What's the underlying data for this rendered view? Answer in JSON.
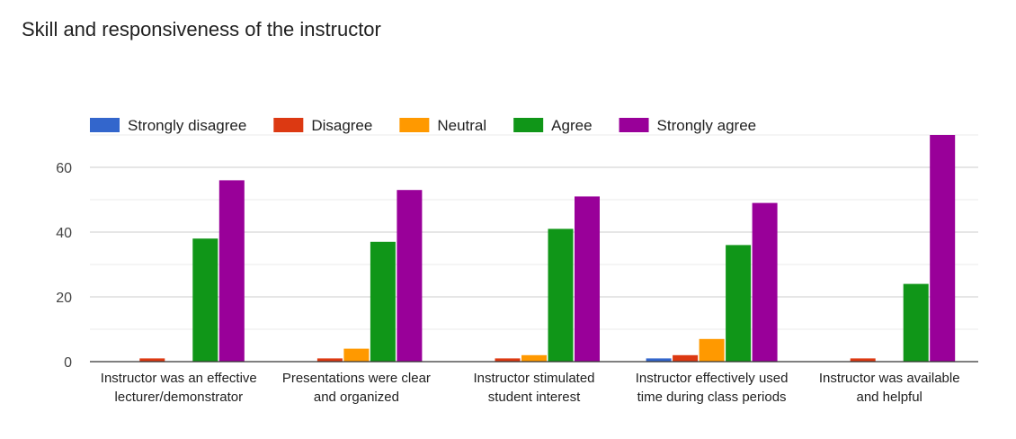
{
  "chart_data": {
    "type": "bar",
    "title": "Skill and responsiveness of the instructor",
    "xlabel": "",
    "ylabel": "",
    "ylim": [
      0,
      70
    ],
    "yticks": [
      0,
      20,
      40,
      60
    ],
    "grid": true,
    "legend_position": "top",
    "categories": [
      [
        "Instructor was an effective",
        "lecturer/demonstrator"
      ],
      [
        "Presentations were clear",
        "and organized"
      ],
      [
        "Instructor stimulated",
        "student interest"
      ],
      [
        "Instructor effectively used",
        "time during class periods"
      ],
      [
        "Instructor was available",
        "and helpful"
      ]
    ],
    "series": [
      {
        "name": "Strongly disagree",
        "color": "#3366cc",
        "values": [
          0,
          0,
          0,
          1,
          0
        ]
      },
      {
        "name": "Disagree",
        "color": "#dc3912",
        "values": [
          1,
          1,
          1,
          2,
          1
        ]
      },
      {
        "name": "Neutral",
        "color": "#ff9900",
        "values": [
          0,
          4,
          2,
          7,
          0
        ]
      },
      {
        "name": "Agree",
        "color": "#109618",
        "values": [
          38,
          37,
          41,
          36,
          24
        ]
      },
      {
        "name": "Strongly agree",
        "color": "#990099",
        "values": [
          56,
          53,
          51,
          49,
          70
        ]
      }
    ]
  }
}
